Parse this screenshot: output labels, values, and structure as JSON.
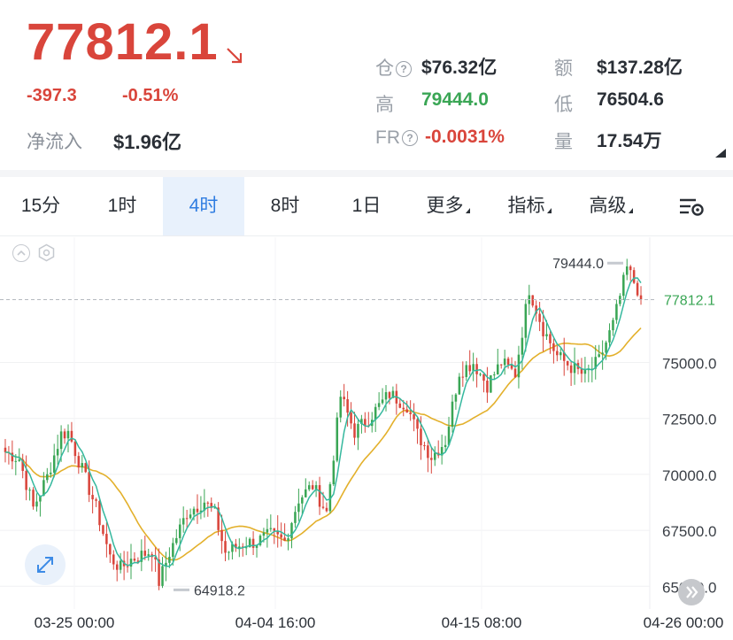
{
  "ticker": {
    "last_price": "77812.1",
    "change": "-397.3",
    "change_pct": "-0.51%",
    "net_flow_label": "净流入",
    "net_flow_value": "$1.96亿"
  },
  "stats": {
    "oi_label": "仓",
    "oi_value": "$76.32亿",
    "turnover_label": "额",
    "turnover_value": "$137.28亿",
    "high_label": "高",
    "high_value": "79444.0",
    "low_label": "低",
    "low_value": "76504.6",
    "fr_label": "FR",
    "fr_value": "-0.0031%",
    "volume_label": "量",
    "volume_value": "17.54万"
  },
  "tabs": [
    {
      "label": "15分",
      "active": false
    },
    {
      "label": "1时",
      "active": false
    },
    {
      "label": "4时",
      "active": true
    },
    {
      "label": "8时",
      "active": false
    },
    {
      "label": "1日",
      "active": false
    },
    {
      "label": "更多",
      "active": false
    },
    {
      "label": "指标",
      "active": false
    },
    {
      "label": "高级",
      "active": false
    }
  ],
  "colors": {
    "down": "#d9453b",
    "up": "#3aa655",
    "accent": "#2f7de1",
    "ma_fast": "#35b89e",
    "ma_slow": "#e3b02b"
  },
  "chart_data": {
    "type": "candlestick",
    "y_ticks": [
      "75000.0",
      "72500.0",
      "70000.0",
      "67500.0",
      "65000.0"
    ],
    "x_ticks": [
      "03-25 00:00",
      "04-04 16:00",
      "04-15 08:00",
      "04-26 00:00"
    ],
    "ylim": [
      64300,
      80600
    ],
    "current_price_label": "77812.1",
    "high_marker": "79444.0",
    "low_marker": "64918.2",
    "grid": true,
    "anchors": [
      [
        0,
        71000
      ],
      [
        4,
        70700
      ],
      [
        8,
        68500
      ],
      [
        12,
        69900
      ],
      [
        16,
        71800
      ],
      [
        18,
        71900
      ],
      [
        22,
        70200
      ],
      [
        26,
        68500
      ],
      [
        30,
        66300
      ],
      [
        33,
        65800
      ],
      [
        36,
        66200
      ],
      [
        42,
        66600
      ],
      [
        44,
        65200
      ],
      [
        47,
        66500
      ],
      [
        52,
        68300
      ],
      [
        57,
        68800
      ],
      [
        60,
        68200
      ],
      [
        63,
        66500
      ],
      [
        68,
        66900
      ],
      [
        72,
        67000
      ],
      [
        76,
        67300
      ],
      [
        80,
        67000
      ],
      [
        84,
        68900
      ],
      [
        88,
        69500
      ],
      [
        92,
        68300
      ],
      [
        96,
        73500
      ],
      [
        100,
        71900
      ],
      [
        104,
        72500
      ],
      [
        110,
        73600
      ],
      [
        115,
        73100
      ],
      [
        118,
        71800
      ],
      [
        122,
        70800
      ],
      [
        126,
        71500
      ],
      [
        130,
        74600
      ],
      [
        134,
        75000
      ],
      [
        138,
        74000
      ],
      [
        142,
        75000
      ],
      [
        146,
        74500
      ],
      [
        150,
        78300
      ],
      [
        154,
        76500
      ],
      [
        158,
        75300
      ],
      [
        162,
        74800
      ],
      [
        166,
        74400
      ],
      [
        170,
        75100
      ],
      [
        174,
        76700
      ],
      [
        178,
        79200
      ],
      [
        181,
        78300
      ],
      [
        182,
        77812
      ]
    ]
  }
}
